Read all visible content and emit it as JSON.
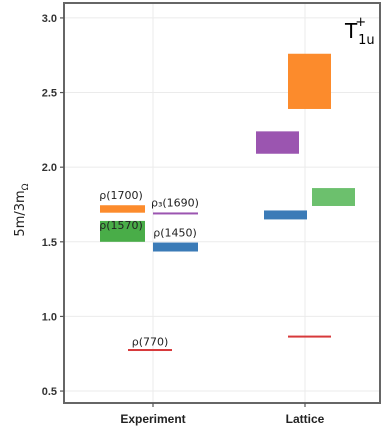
{
  "chart_data": {
    "type": "bar",
    "corner_label": {
      "base": "T",
      "sup": "+",
      "sub": "1u"
    },
    "ylabel": {
      "text": "5m/3m",
      "sub": "Ω"
    },
    "categories": [
      "Experiment",
      "Lattice"
    ],
    "ylim": [
      0.42,
      3.1
    ],
    "yticks": [
      0.5,
      1.0,
      1.5,
      2.0,
      2.5,
      3.0
    ],
    "ytick_labels": [
      "0.5",
      "1.0",
      "1.5",
      "2.0",
      "2.5",
      "3.0"
    ],
    "grid": true,
    "colors": {
      "red": "#d7393b",
      "green": "#49ad48",
      "blue": "#3b7bb7",
      "purple": "#9b55b0",
      "orange": "#fc8b2c",
      "lightgreen": "#6cc06d"
    },
    "experiment": [
      {
        "label": "ρ(770)",
        "center": 0.775,
        "lo": 0.77,
        "hi": 0.78,
        "color": "red"
      },
      {
        "label": "ρ(1450)",
        "center": 1.465,
        "lo": 1.435,
        "hi": 1.495,
        "color": "blue"
      },
      {
        "label": "ρ(1570)",
        "center": 1.57,
        "lo": 1.5,
        "hi": 1.64,
        "color": "green"
      },
      {
        "label": "ρ₃(1690)",
        "center": 1.69,
        "lo": 1.685,
        "hi": 1.695,
        "color": "purple"
      },
      {
        "label": "ρ(1700)",
        "center": 1.72,
        "lo": 1.695,
        "hi": 1.745,
        "color": "orange"
      }
    ],
    "lattice": [
      {
        "center": 0.865,
        "lo": 0.86,
        "hi": 0.87,
        "color": "red"
      },
      {
        "center": 1.68,
        "lo": 1.65,
        "hi": 1.71,
        "color": "blue"
      },
      {
        "center": 1.8,
        "lo": 1.74,
        "hi": 1.86,
        "color": "lightgreen"
      },
      {
        "center": 2.165,
        "lo": 2.09,
        "hi": 2.24,
        "color": "purple"
      },
      {
        "center": 2.575,
        "lo": 2.39,
        "hi": 2.76,
        "color": "orange"
      }
    ]
  }
}
